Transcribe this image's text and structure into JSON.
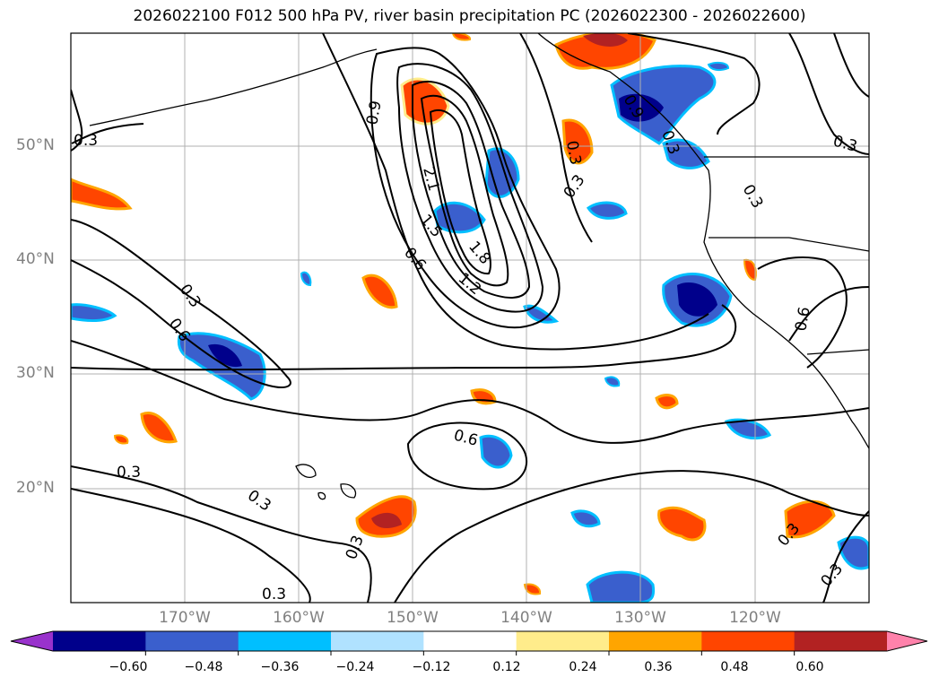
{
  "title": "2026022100 F012 500 hPa PV, river basin precipitation PC (2026022300 - 2026022600)",
  "lat_labels": [
    "50°N",
    "40°N",
    "30°N",
    "20°N"
  ],
  "lon_labels": [
    "170°W",
    "160°W",
    "150°W",
    "140°W",
    "130°W",
    "120°W"
  ],
  "contour_labels": [
    "0.3",
    "0.3",
    "0.3",
    "0.6",
    "0.6",
    "0.9",
    "2.1",
    "1.5",
    "1.8",
    "1.2",
    "0.6",
    "0.3",
    "0.3",
    "0.3",
    "0.6",
    "0.3",
    "0.3",
    "0.3",
    "0.3",
    "0.3",
    "0.3",
    "0.3",
    "0.9"
  ],
  "colorbar": {
    "ticks": [
      "−0.60",
      "−0.48",
      "−0.36",
      "−0.24",
      "−0.12",
      "0.12",
      "0.24",
      "0.36",
      "0.48",
      "0.60"
    ],
    "colors": [
      "#9932cc",
      "#00008b",
      "#3a5fcd",
      "#00bfff",
      "#b0e2ff",
      "#ffffff",
      "#ffec8b",
      "#ffa500",
      "#ff4500",
      "#b22222",
      "#ff82ab"
    ]
  },
  "colors": {
    "neg_strong": "#00008b",
    "neg_mid": "#3a5fcd",
    "neg_light": "#00bfff",
    "pos_light": "#ffec8b",
    "pos_mid": "#ffa500",
    "pos_strong": "#ff4500",
    "pos_dark": "#b22222",
    "pos_max": "#ff82ab",
    "grid": "#b0b0b0",
    "contour": "#000000"
  }
}
